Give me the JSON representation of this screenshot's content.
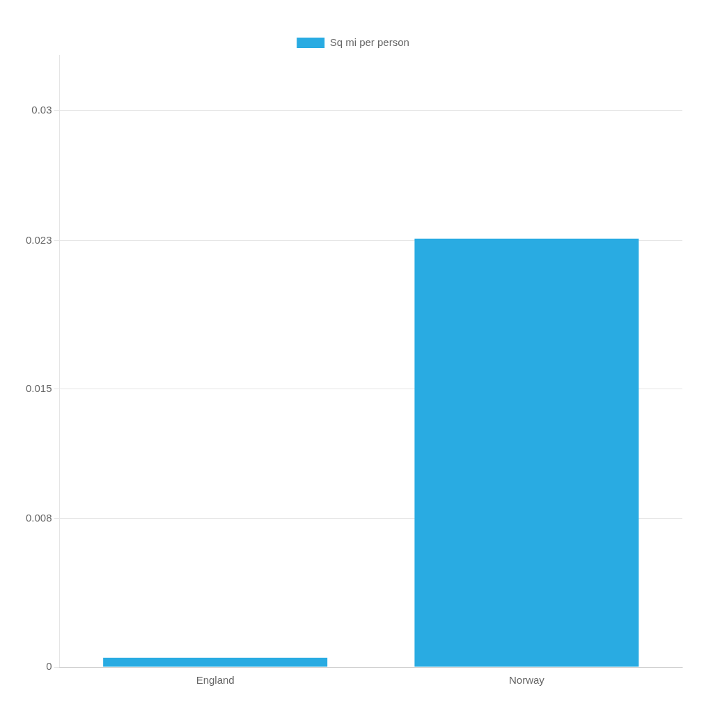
{
  "chart_data": {
    "type": "bar",
    "categories": [
      "England",
      "Norway"
    ],
    "series": [
      {
        "name": "Sq mi per person",
        "color": "#29ABE2",
        "values": [
          0.0005,
          0.0231
        ]
      }
    ],
    "ylim": [
      0,
      0.033
    ],
    "yticks": [
      0,
      0.008,
      0.015,
      0.023,
      0.03
    ],
    "grid": true,
    "legend": "top"
  }
}
